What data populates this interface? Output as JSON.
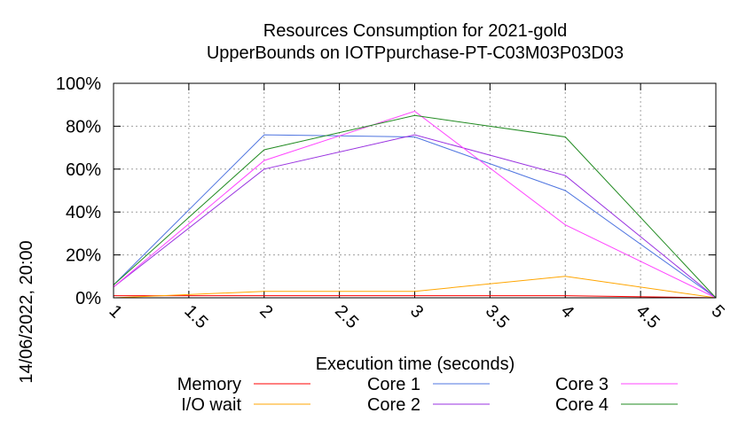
{
  "chart_data": {
    "type": "line",
    "title": "Resources Consumption for 2021-gold",
    "subtitle": "UpperBounds on IOTPpurchase-PT-C03M03P03D03",
    "xlabel": "Execution time (seconds)",
    "ylabel": "",
    "side_label": "14/06/2022, 20:00",
    "xlim": [
      1,
      5
    ],
    "ylim": [
      0,
      100
    ],
    "x_ticks": [
      "1",
      "1.5",
      "2",
      "2.5",
      "3",
      "3.5",
      "4",
      "4.5",
      "5"
    ],
    "y_ticks": [
      "0%",
      "20%",
      "40%",
      "60%",
      "80%",
      "100%"
    ],
    "grid": true,
    "legend_position": "bottom",
    "x": [
      1,
      2,
      3,
      4,
      5
    ],
    "series": [
      {
        "name": "Memory",
        "color": "#ff0000",
        "values": [
          1,
          1,
          1,
          1,
          0
        ]
      },
      {
        "name": "I/O wait",
        "color": "#ffa500",
        "values": [
          0,
          3,
          3,
          10,
          0
        ]
      },
      {
        "name": "Core 1",
        "color": "#4f75e0",
        "values": [
          6,
          76,
          75,
          50,
          0
        ]
      },
      {
        "name": "Core 2",
        "color": "#9932e0",
        "values": [
          5,
          60,
          76,
          57,
          0
        ]
      },
      {
        "name": "Core 3",
        "color": "#ff44ff",
        "values": [
          5,
          64,
          87,
          34,
          0
        ]
      },
      {
        "name": "Core 4",
        "color": "#228b22",
        "values": [
          6,
          69,
          85,
          75,
          0
        ]
      }
    ]
  }
}
